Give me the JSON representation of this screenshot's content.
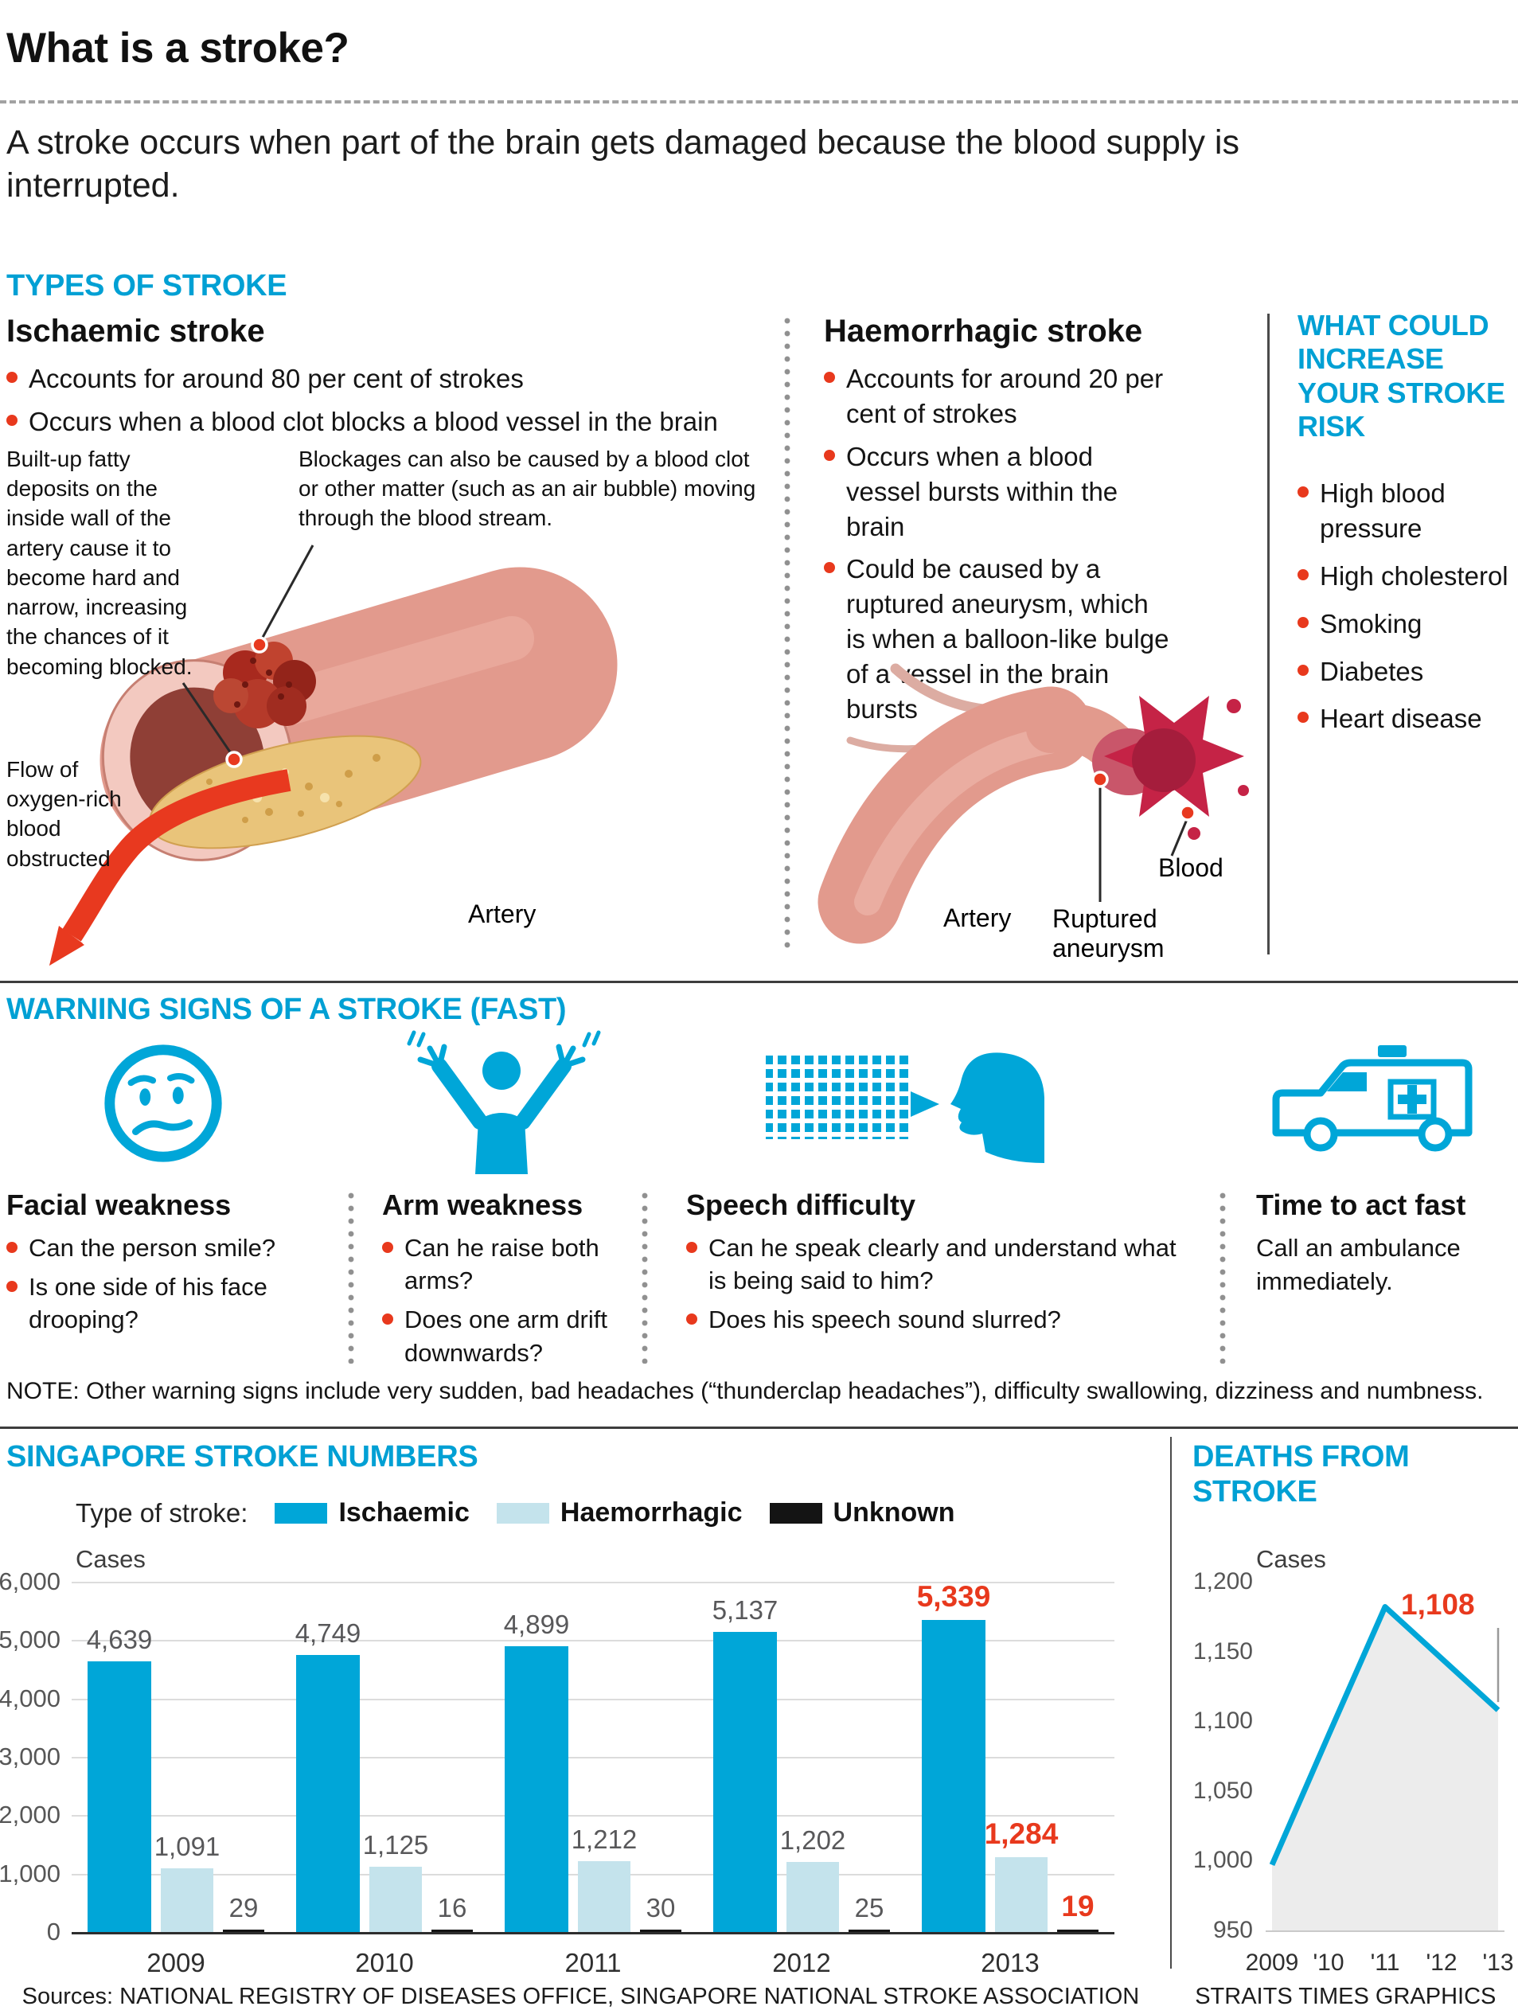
{
  "colors": {
    "accent": "#00a6d8",
    "accent_light": "#c4e3ec",
    "red": "#e8391d",
    "label_grey": "#58585a"
  },
  "header": {
    "title": "What is a stroke?",
    "intro": "A stroke occurs when part of the brain gets damaged because the blood supply is interrupted."
  },
  "types": {
    "heading": "TYPES OF STROKE",
    "ischaemic": {
      "title": "Ischaemic stroke",
      "bullets": [
        "Accounts for around 80 per cent of strokes",
        "Occurs when a blood clot blocks a blood vessel in the brain"
      ],
      "annotation_fatty": "Built-up fatty deposits on the inside wall of the artery cause it to become hard and narrow, increasing the chances of it becoming blocked.",
      "annotation_blockage": "Blockages can also be caused by a blood clot or other matter (such as an air bubble) moving through the blood stream.",
      "annotation_flow": "Flow of oxygen-rich blood obstructed",
      "label_artery": "Artery"
    },
    "haemorrhagic": {
      "title": "Haemorrhagic stroke",
      "bullets": [
        "Accounts for around 20 per cent of strokes",
        "Occurs when a blood vessel bursts within the brain",
        "Could be caused by a ruptured aneurysm, which is when a balloon-like bulge of a vessel in the brain bursts"
      ],
      "label_artery": "Artery",
      "label_aneurysm": "Ruptured aneurysm",
      "label_blood": "Blood"
    },
    "risk": {
      "heading": "WHAT COULD INCREASE YOUR STROKE RISK",
      "items": [
        "High blood pressure",
        "High cholesterol",
        "Smoking",
        "Diabetes",
        "Heart disease"
      ]
    }
  },
  "warning": {
    "heading": "WARNING SIGNS OF A STROKE (FAST)",
    "columns": [
      {
        "icon": "worried-face-icon",
        "title": "Facial weakness",
        "bullets": [
          "Can the person smile?",
          "Is one side of his face drooping?"
        ]
      },
      {
        "icon": "raised-arms-icon",
        "title": "Arm weakness",
        "bullets": [
          "Can he raise both arms?",
          "Does one arm drift downwards?"
        ]
      },
      {
        "icon": "speech-bubble-icon",
        "title": "Speech difficulty",
        "bullets": [
          "Can he speak clearly and understand what is being said to him?",
          "Does his speech sound slurred?"
        ]
      },
      {
        "icon": "ambulance-icon",
        "title": "Time to act fast",
        "text": "Call an ambulance immediately."
      }
    ],
    "note": "NOTE: Other warning signs include very sudden, bad headaches (“thunderclap headaches”), difficulty swallowing, dizziness and numbness."
  },
  "chart_data": [
    {
      "type": "bar",
      "title": "SINGAPORE STROKE NUMBERS",
      "legend_label": "Type of stroke:",
      "ylabel": "Cases",
      "ylim": [
        0,
        6000
      ],
      "ytick_step": 1000,
      "grid": true,
      "categories": [
        "2009",
        "2010",
        "2011",
        "2012",
        "2013"
      ],
      "series": [
        {
          "name": "Ischaemic",
          "color": "#00a6d8",
          "values": [
            4639,
            4749,
            4899,
            5137,
            5339
          ]
        },
        {
          "name": "Haemorrhagic",
          "color": "#c4e3ec",
          "values": [
            1091,
            1125,
            1212,
            1202,
            1284
          ]
        },
        {
          "name": "Unknown",
          "color": "#141414",
          "values": [
            29,
            16,
            30,
            25,
            19
          ]
        }
      ],
      "highlight_last_category": true,
      "highlight_color": "#e8391d"
    },
    {
      "type": "line",
      "title": "DEATHS FROM STROKE",
      "ylabel": "Cases",
      "ylim": [
        950,
        1200
      ],
      "ytick_step": 50,
      "x": [
        "2009",
        "'10",
        "'11",
        "'12",
        "'13"
      ],
      "values": [
        997,
        1090,
        1182,
        1145,
        1108
      ],
      "end_label": "1,108",
      "line_color": "#00a6d8",
      "fill_color": "#ececec"
    }
  ],
  "footer": {
    "sources": "Sources: NATIONAL REGISTRY OF DISEASES OFFICE, SINGAPORE NATIONAL STROKE ASSOCIATION",
    "credit": "STRAITS TIMES GRAPHICS"
  }
}
